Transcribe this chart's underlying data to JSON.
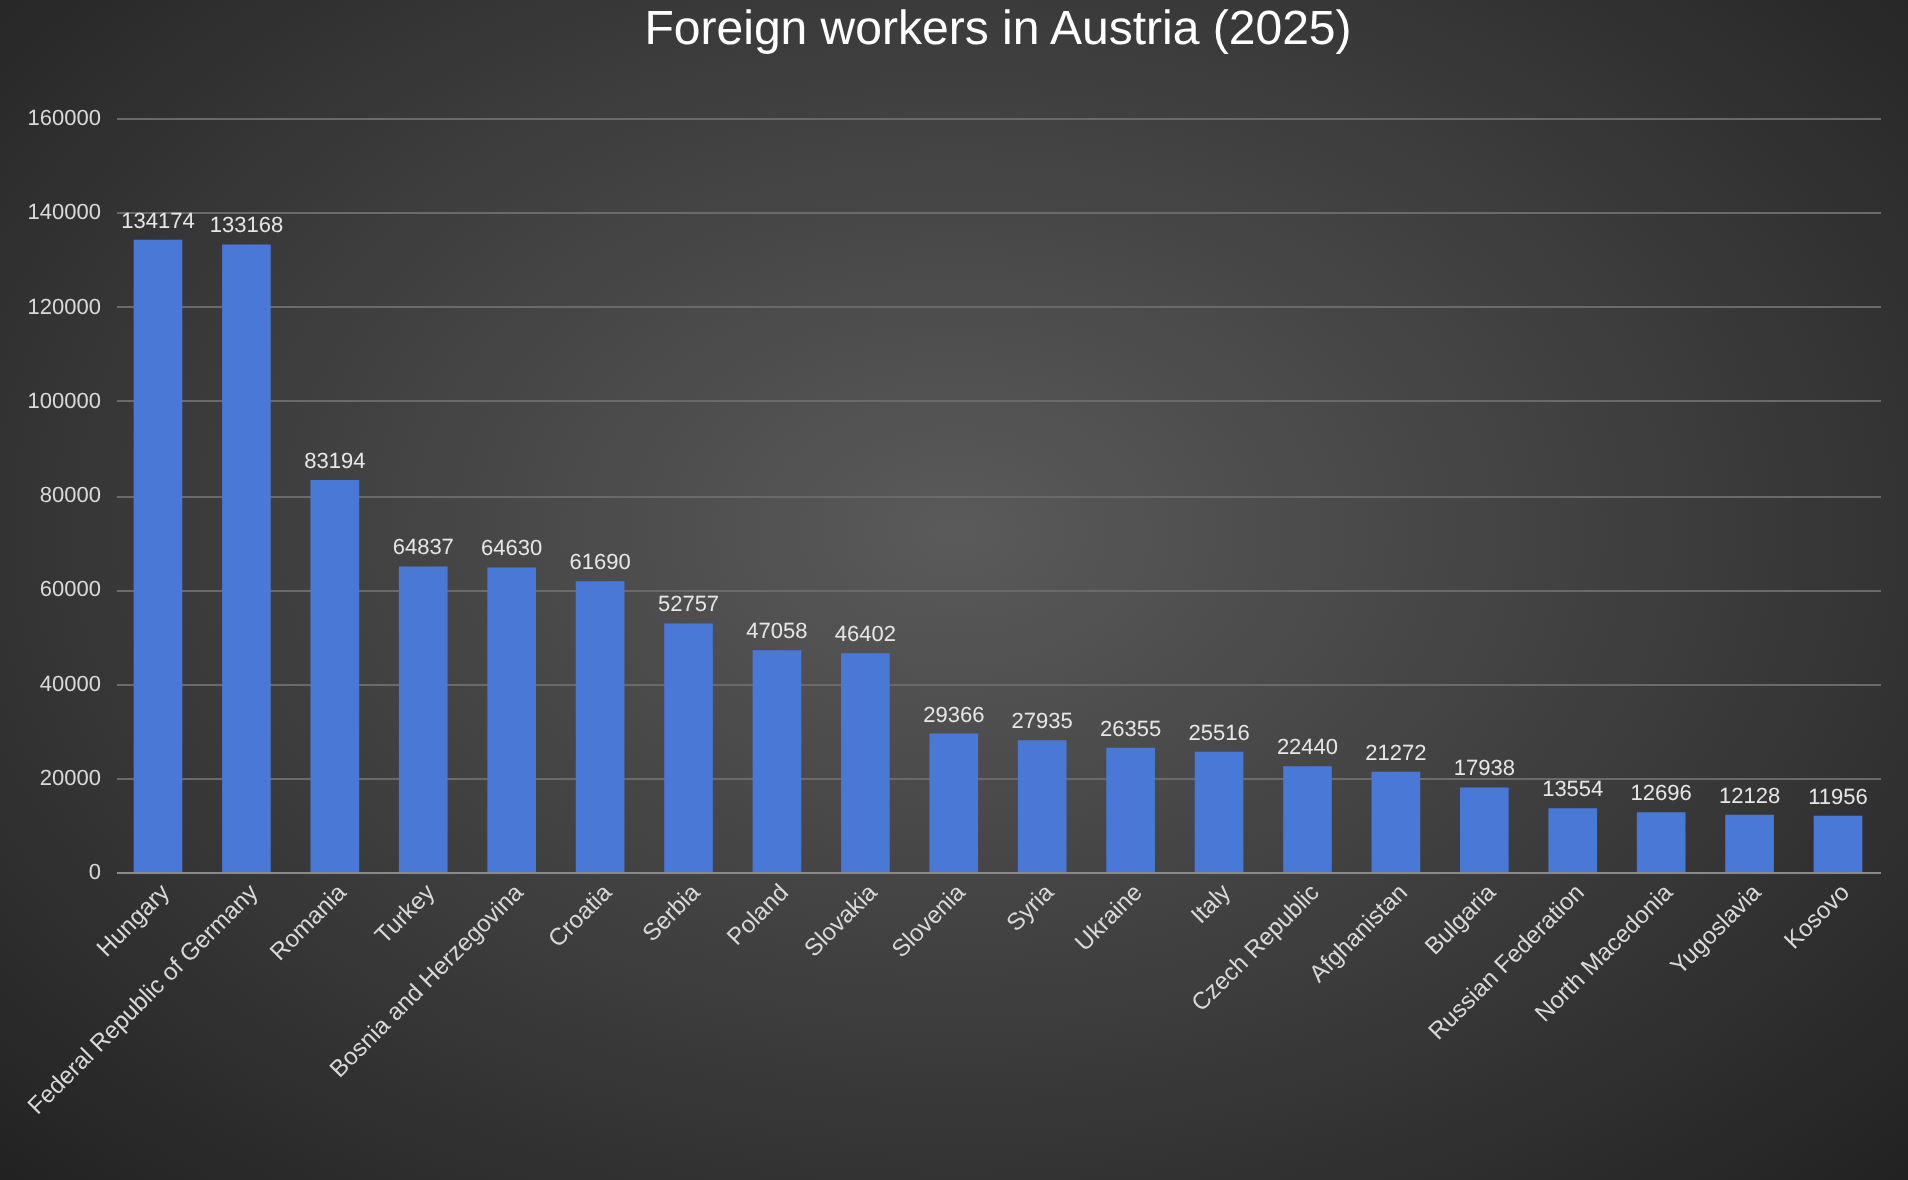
{
  "chart_data": {
    "type": "bar",
    "title": "Foreign workers in Austria (2025)",
    "categories": [
      "Hungary",
      "Federal Republic of Germany",
      "Romania",
      "Turkey",
      "Bosnia and Herzegovina",
      "Croatia",
      "Serbia",
      "Poland",
      "Slovakia",
      "Slovenia",
      "Syria",
      "Ukraine",
      "Italy",
      "Czech Republic",
      "Afghanistan",
      "Bulgaria",
      "Russian Federation",
      "North Macedonia",
      "Yugoslavia",
      "Kosovo"
    ],
    "values": [
      134174,
      133168,
      83194,
      64837,
      64630,
      61690,
      52757,
      47058,
      46402,
      29366,
      27935,
      26355,
      25516,
      22440,
      21272,
      17938,
      13554,
      12696,
      12128,
      11956
    ],
    "color": "#4a78d6",
    "ylim": [
      0,
      160000
    ],
    "yticks": [
      0,
      20000,
      40000,
      60000,
      80000,
      100000,
      120000,
      140000,
      160000
    ],
    "grid": "y",
    "data_labels": true
  }
}
